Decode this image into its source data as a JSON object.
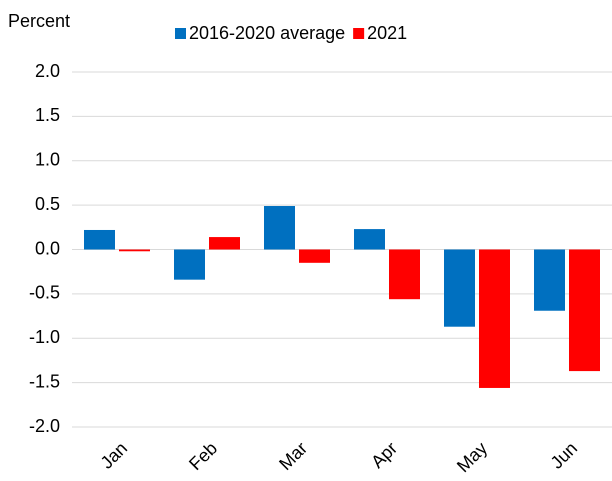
{
  "chart_data": {
    "type": "bar",
    "y_label": "Percent",
    "categories": [
      "Jan",
      "Feb",
      "Mar",
      "Apr",
      "May",
      "Jun"
    ],
    "series": [
      {
        "name": "2016-2020 average",
        "color": "#0070c0",
        "values": [
          0.22,
          -0.34,
          0.49,
          0.23,
          -0.87,
          -0.69
        ]
      },
      {
        "name": "2021",
        "color": "#ff0000",
        "values": [
          -0.02,
          0.14,
          -0.15,
          -0.56,
          -1.56,
          -1.37
        ]
      }
    ],
    "ylim": [
      -2.0,
      2.0
    ],
    "yticks": [
      {
        "value": -2.0,
        "label": "-2.0"
      },
      {
        "value": -1.5,
        "label": "-1.5"
      },
      {
        "value": -1.0,
        "label": "-1.0"
      },
      {
        "value": -0.5,
        "label": "-0.5"
      },
      {
        "value": 0,
        "label": "0.0"
      },
      {
        "value": 0.5,
        "label": "0.5"
      },
      {
        "value": 1.0,
        "label": "1.0"
      },
      {
        "value": 1.5,
        "label": "1.5"
      },
      {
        "value": 2.0,
        "label": "2.0"
      }
    ],
    "grid": true,
    "legend": "top"
  }
}
